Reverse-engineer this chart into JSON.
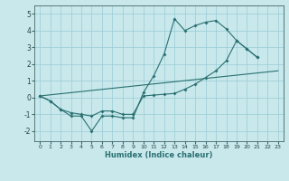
{
  "xlabel": "Humidex (Indice chaleur)",
  "bg_color": "#c8e8ec",
  "grid_color": "#99ccd4",
  "line_color": "#2a7070",
  "xlim": [
    -0.5,
    23.5
  ],
  "ylim": [
    -2.6,
    5.5
  ],
  "yticks": [
    -2,
    -1,
    0,
    1,
    2,
    3,
    4,
    5
  ],
  "xticks": [
    0,
    1,
    2,
    3,
    4,
    5,
    6,
    7,
    8,
    9,
    10,
    11,
    12,
    13,
    14,
    15,
    16,
    17,
    18,
    19,
    20,
    21,
    22,
    23
  ],
  "line1_x": [
    0,
    1,
    2,
    3,
    4,
    5,
    6,
    7,
    8,
    9,
    10,
    11,
    12,
    13,
    14,
    15,
    16,
    17,
    18,
    19,
    20,
    21
  ],
  "line1_y": [
    0.1,
    -0.2,
    -0.7,
    -1.1,
    -1.1,
    -2.0,
    -1.1,
    -1.1,
    -1.2,
    -1.2,
    0.3,
    1.3,
    2.6,
    4.7,
    4.0,
    4.3,
    4.5,
    4.6,
    4.1,
    3.4,
    2.9,
    2.4
  ],
  "line2_x": [
    0,
    1,
    2,
    3,
    4,
    5,
    6,
    7,
    8,
    9,
    10,
    11,
    12,
    13,
    14,
    15,
    16,
    17,
    18,
    19,
    20,
    21
  ],
  "line2_y": [
    0.1,
    -0.2,
    -0.7,
    -0.9,
    -1.0,
    -1.1,
    -0.8,
    -0.8,
    -1.0,
    -1.0,
    0.1,
    0.15,
    0.2,
    0.25,
    0.5,
    0.8,
    1.2,
    1.6,
    2.2,
    3.4,
    2.9,
    2.4
  ],
  "line3_x": [
    0,
    23
  ],
  "line3_y": [
    0.1,
    1.6
  ]
}
